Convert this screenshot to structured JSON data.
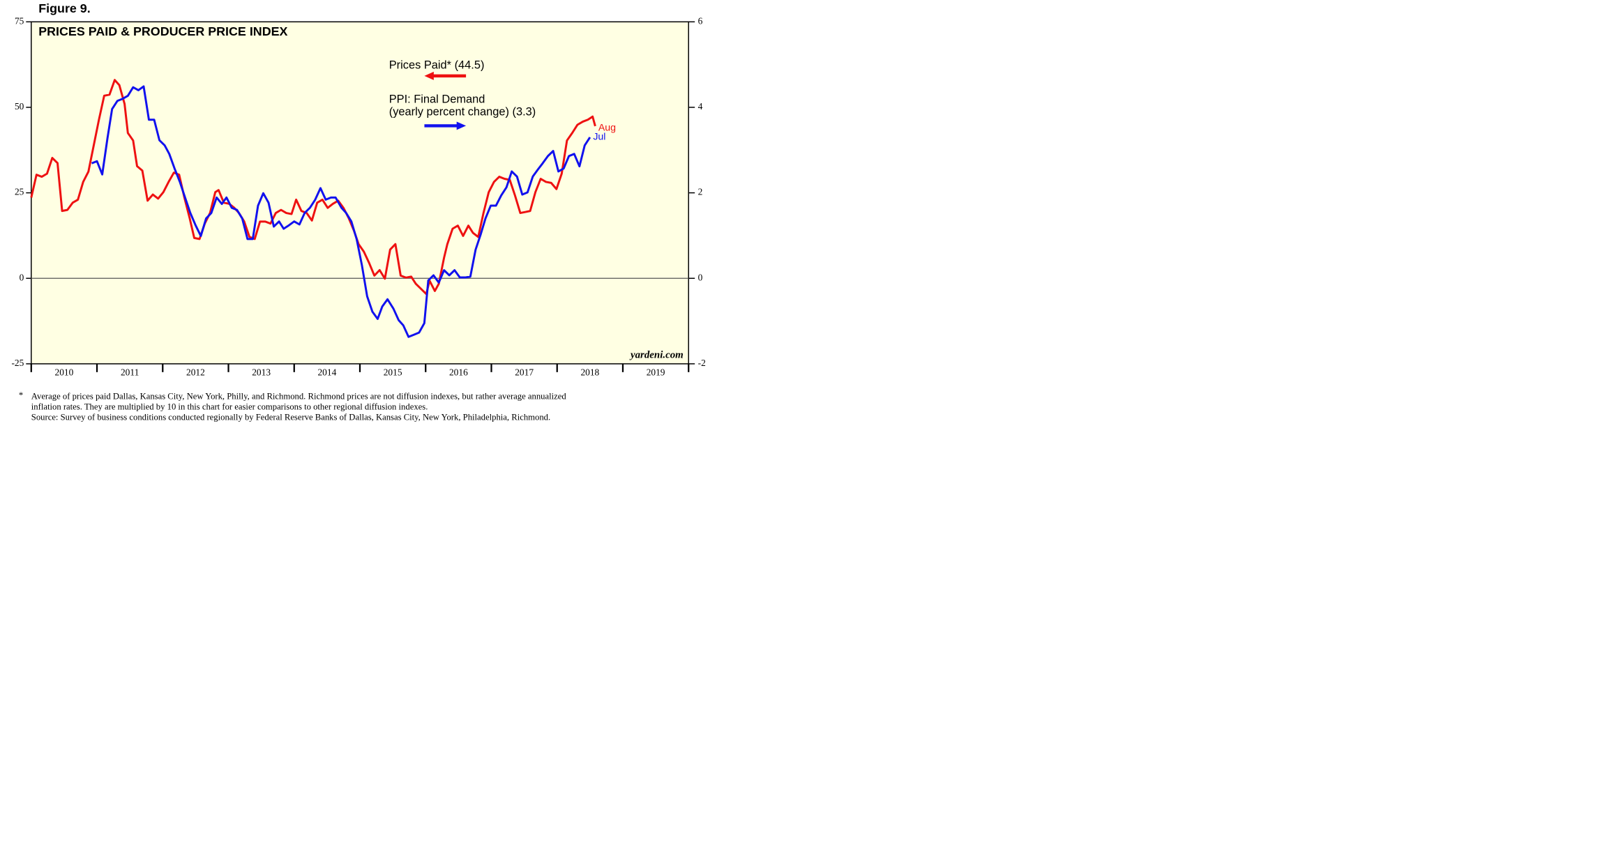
{
  "figure_label": "Figure 9.",
  "chart_data": {
    "type": "line",
    "title": "PRICES PAID & PRODUCER PRICE INDEX",
    "xlim": [
      2010,
      2020
    ],
    "xticks": [
      {
        "value": 2010,
        "label": "2010"
      },
      {
        "value": 2011,
        "label": "2011"
      },
      {
        "value": 2012,
        "label": "2012"
      },
      {
        "value": 2013,
        "label": "2013"
      },
      {
        "value": 2014,
        "label": "2014"
      },
      {
        "value": 2015,
        "label": "2015"
      },
      {
        "value": 2016,
        "label": "2016"
      },
      {
        "value": 2017,
        "label": "2017"
      },
      {
        "value": 2018,
        "label": "2018"
      },
      {
        "value": 2019,
        "label": "2019"
      }
    ],
    "ylim": [
      -25,
      75
    ],
    "yticks": [
      -25,
      0,
      25,
      50,
      75
    ],
    "y2lim": [
      -2,
      6
    ],
    "y2ticks": [
      -2,
      0,
      2,
      4,
      6
    ],
    "zero_line": true,
    "background": "#ffffe3",
    "watermark": "yardeni.com",
    "series": [
      {
        "name": "Prices Paid* (44.5)",
        "color": "#ee1111",
        "axis": "y",
        "end_label": "Aug",
        "x": [
          2010.0,
          2010.08,
          2010.16,
          2010.24,
          2010.32,
          2010.4,
          2010.47,
          2010.55,
          2010.63,
          2010.71,
          2010.79,
          2010.87,
          2010.95,
          2011.03,
          2011.11,
          2011.19,
          2011.27,
          2011.34,
          2011.42,
          2011.47,
          2011.55,
          2011.61,
          2011.69,
          2011.77,
          2011.85,
          2011.93,
          2012.01,
          2012.09,
          2012.17,
          2012.25,
          2012.33,
          2012.41,
          2012.48,
          2012.56,
          2012.64,
          2012.72,
          2012.8,
          2012.85,
          2012.93,
          2013.01,
          2013.09,
          2013.16,
          2013.24,
          2013.32,
          2013.4,
          2013.48,
          2013.56,
          2013.64,
          2013.72,
          2013.8,
          2013.88,
          2013.96,
          2014.03,
          2014.11,
          2014.19,
          2014.27,
          2014.35,
          2014.43,
          2014.51,
          2014.59,
          2014.67,
          2014.75,
          2014.83,
          2014.91,
          2014.98,
          2015.06,
          2015.14,
          2015.22,
          2015.3,
          2015.38,
          2015.46,
          2015.54,
          2015.62,
          2015.7,
          2015.78,
          2015.85,
          2015.93,
          2016.01,
          2016.06,
          2016.14,
          2016.2,
          2016.28,
          2016.33,
          2016.41,
          2016.49,
          2016.57,
          2016.65,
          2016.72,
          2016.8,
          2016.88,
          2016.96,
          2017.04,
          2017.12,
          2017.2,
          2017.28,
          2017.36,
          2017.44,
          2017.52,
          2017.59,
          2017.67,
          2017.75,
          2017.83,
          2017.91,
          2017.99,
          2018.07,
          2018.15,
          2018.23,
          2018.31,
          2018.39,
          2018.47,
          2018.54,
          2018.58
        ],
        "values": [
          23.6,
          30.3,
          29.7,
          30.6,
          35.2,
          33.7,
          19.7,
          20.0,
          22.1,
          23.0,
          28.2,
          31.2,
          38.8,
          46.4,
          53.4,
          53.7,
          58.0,
          56.5,
          51.0,
          42.5,
          40.3,
          32.8,
          31.5,
          22.7,
          24.5,
          23.3,
          25.2,
          28.2,
          30.9,
          30.3,
          23.6,
          17.6,
          11.8,
          11.5,
          16.0,
          19.1,
          25.2,
          25.8,
          22.1,
          21.8,
          20.6,
          19.1,
          16.6,
          12.1,
          11.5,
          16.6,
          16.6,
          16.0,
          19.1,
          20.0,
          19.1,
          18.8,
          23.0,
          19.7,
          19.1,
          16.9,
          22.1,
          23.0,
          20.6,
          21.8,
          22.7,
          20.6,
          17.6,
          13.9,
          10.0,
          7.8,
          4.5,
          0.8,
          2.4,
          -0.1,
          8.4,
          10.0,
          0.8,
          0.2,
          0.5,
          -1.6,
          -3.1,
          -4.6,
          -0.7,
          -3.7,
          -1.6,
          6.0,
          10.0,
          14.5,
          15.4,
          12.4,
          15.4,
          13.3,
          12.1,
          19.1,
          25.2,
          28.2,
          29.7,
          29.1,
          28.8,
          24.2,
          19.1,
          19.4,
          19.7,
          25.2,
          29.1,
          28.2,
          27.9,
          26.1,
          30.6,
          40.3,
          42.5,
          44.9,
          45.8,
          46.4,
          47.3,
          44.5
        ]
      },
      {
        "name": "PPI: Final Demand",
        "legend_note": "(yearly percent change) (3.3)",
        "color": "#1111ee",
        "axis": "y2",
        "end_label": "Jul",
        "x": [
          2010.92,
          2011.0,
          2011.08,
          2011.16,
          2011.23,
          2011.31,
          2011.39,
          2011.47,
          2011.55,
          2011.63,
          2011.71,
          2011.79,
          2011.87,
          2011.95,
          2012.03,
          2012.1,
          2012.18,
          2012.26,
          2012.34,
          2012.42,
          2012.5,
          2012.58,
          2012.66,
          2012.74,
          2012.82,
          2012.9,
          2012.97,
          2013.05,
          2013.13,
          2013.21,
          2013.29,
          2013.37,
          2013.45,
          2013.53,
          2013.61,
          2013.69,
          2013.77,
          2013.84,
          2013.92,
          2014.0,
          2014.08,
          2014.16,
          2014.24,
          2014.32,
          2014.4,
          2014.48,
          2014.56,
          2014.63,
          2014.72,
          2014.79,
          2014.87,
          2014.95,
          2015.03,
          2015.11,
          2015.19,
          2015.27,
          2015.34,
          2015.42,
          2015.51,
          2015.59,
          2015.66,
          2015.74,
          2015.82,
          2015.9,
          2015.98,
          2016.04,
          2016.12,
          2016.2,
          2016.28,
          2016.36,
          2016.44,
          2016.52,
          2016.6,
          2016.68,
          2016.76,
          2016.84,
          2016.91,
          2016.99,
          2017.07,
          2017.15,
          2017.23,
          2017.31,
          2017.39,
          2017.47,
          2017.55,
          2017.63,
          2017.71,
          2017.78,
          2017.86,
          2017.94,
          2018.02,
          2018.1,
          2018.18,
          2018.26,
          2018.34,
          2018.42,
          2018.5
        ],
        "values": [
          2.69,
          2.74,
          2.43,
          3.28,
          3.96,
          4.15,
          4.2,
          4.27,
          4.47,
          4.4,
          4.49,
          3.71,
          3.71,
          3.23,
          3.11,
          2.91,
          2.57,
          2.26,
          1.89,
          1.53,
          1.24,
          0.99,
          1.4,
          1.53,
          1.89,
          1.74,
          1.89,
          1.65,
          1.6,
          1.4,
          0.92,
          0.92,
          1.7,
          1.99,
          1.77,
          1.21,
          1.33,
          1.16,
          1.24,
          1.33,
          1.26,
          1.53,
          1.65,
          1.84,
          2.11,
          1.84,
          1.89,
          1.89,
          1.65,
          1.53,
          1.33,
          0.92,
          0.31,
          -0.42,
          -0.78,
          -0.95,
          -0.66,
          -0.49,
          -0.71,
          -0.98,
          -1.1,
          -1.37,
          -1.32,
          -1.27,
          -1.05,
          -0.05,
          0.07,
          -0.1,
          0.19,
          0.07,
          0.19,
          0.02,
          0.02,
          0.04,
          0.67,
          1.04,
          1.4,
          1.7,
          1.7,
          1.94,
          2.13,
          2.5,
          2.38,
          1.96,
          2.01,
          2.38,
          2.55,
          2.69,
          2.86,
          2.98,
          2.5,
          2.57,
          2.86,
          2.91,
          2.62,
          3.11,
          3.3
        ]
      }
    ]
  },
  "footnote": {
    "marker": "*",
    "lines": [
      "Average of prices paid Dallas, Kansas City, New York, Philly, and Richmond. Richmond prices are not diffusion indexes, but rather average annualized",
      "inflation rates. They are multiplied by 10 in this chart for easier comparisons to other regional diffusion indexes.",
      "Source: Survey of business conditions conducted regionally by Federal Reserve Banks of Dallas, Kansas City, New York, Philadelphia, Richmond."
    ]
  }
}
